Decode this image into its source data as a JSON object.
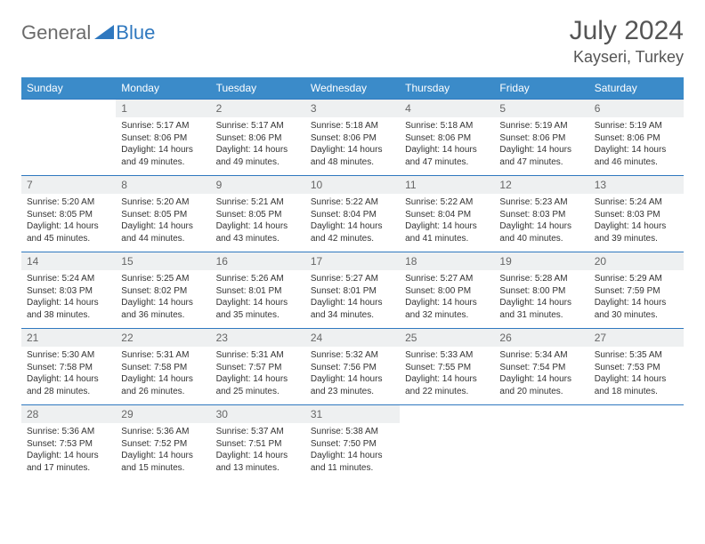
{
  "logo": {
    "general": "General",
    "blue": "Blue",
    "triangle_color": "#2f78bf",
    "text_gray": "#6b6b6b"
  },
  "title": "July 2024",
  "location": "Kayseri, Turkey",
  "header_bg": "#3b8bc9",
  "daynum_bg": "#eef0f1",
  "row_border": "#2f78bf",
  "dow": [
    "Sunday",
    "Monday",
    "Tuesday",
    "Wednesday",
    "Thursday",
    "Friday",
    "Saturday"
  ],
  "grid": [
    [
      {
        "n": "",
        "sr": "",
        "ss": "",
        "dl": ""
      },
      {
        "n": "1",
        "sr": "Sunrise: 5:17 AM",
        "ss": "Sunset: 8:06 PM",
        "dl": "Daylight: 14 hours and 49 minutes."
      },
      {
        "n": "2",
        "sr": "Sunrise: 5:17 AM",
        "ss": "Sunset: 8:06 PM",
        "dl": "Daylight: 14 hours and 49 minutes."
      },
      {
        "n": "3",
        "sr": "Sunrise: 5:18 AM",
        "ss": "Sunset: 8:06 PM",
        "dl": "Daylight: 14 hours and 48 minutes."
      },
      {
        "n": "4",
        "sr": "Sunrise: 5:18 AM",
        "ss": "Sunset: 8:06 PM",
        "dl": "Daylight: 14 hours and 47 minutes."
      },
      {
        "n": "5",
        "sr": "Sunrise: 5:19 AM",
        "ss": "Sunset: 8:06 PM",
        "dl": "Daylight: 14 hours and 47 minutes."
      },
      {
        "n": "6",
        "sr": "Sunrise: 5:19 AM",
        "ss": "Sunset: 8:06 PM",
        "dl": "Daylight: 14 hours and 46 minutes."
      }
    ],
    [
      {
        "n": "7",
        "sr": "Sunrise: 5:20 AM",
        "ss": "Sunset: 8:05 PM",
        "dl": "Daylight: 14 hours and 45 minutes."
      },
      {
        "n": "8",
        "sr": "Sunrise: 5:20 AM",
        "ss": "Sunset: 8:05 PM",
        "dl": "Daylight: 14 hours and 44 minutes."
      },
      {
        "n": "9",
        "sr": "Sunrise: 5:21 AM",
        "ss": "Sunset: 8:05 PM",
        "dl": "Daylight: 14 hours and 43 minutes."
      },
      {
        "n": "10",
        "sr": "Sunrise: 5:22 AM",
        "ss": "Sunset: 8:04 PM",
        "dl": "Daylight: 14 hours and 42 minutes."
      },
      {
        "n": "11",
        "sr": "Sunrise: 5:22 AM",
        "ss": "Sunset: 8:04 PM",
        "dl": "Daylight: 14 hours and 41 minutes."
      },
      {
        "n": "12",
        "sr": "Sunrise: 5:23 AM",
        "ss": "Sunset: 8:03 PM",
        "dl": "Daylight: 14 hours and 40 minutes."
      },
      {
        "n": "13",
        "sr": "Sunrise: 5:24 AM",
        "ss": "Sunset: 8:03 PM",
        "dl": "Daylight: 14 hours and 39 minutes."
      }
    ],
    [
      {
        "n": "14",
        "sr": "Sunrise: 5:24 AM",
        "ss": "Sunset: 8:03 PM",
        "dl": "Daylight: 14 hours and 38 minutes."
      },
      {
        "n": "15",
        "sr": "Sunrise: 5:25 AM",
        "ss": "Sunset: 8:02 PM",
        "dl": "Daylight: 14 hours and 36 minutes."
      },
      {
        "n": "16",
        "sr": "Sunrise: 5:26 AM",
        "ss": "Sunset: 8:01 PM",
        "dl": "Daylight: 14 hours and 35 minutes."
      },
      {
        "n": "17",
        "sr": "Sunrise: 5:27 AM",
        "ss": "Sunset: 8:01 PM",
        "dl": "Daylight: 14 hours and 34 minutes."
      },
      {
        "n": "18",
        "sr": "Sunrise: 5:27 AM",
        "ss": "Sunset: 8:00 PM",
        "dl": "Daylight: 14 hours and 32 minutes."
      },
      {
        "n": "19",
        "sr": "Sunrise: 5:28 AM",
        "ss": "Sunset: 8:00 PM",
        "dl": "Daylight: 14 hours and 31 minutes."
      },
      {
        "n": "20",
        "sr": "Sunrise: 5:29 AM",
        "ss": "Sunset: 7:59 PM",
        "dl": "Daylight: 14 hours and 30 minutes."
      }
    ],
    [
      {
        "n": "21",
        "sr": "Sunrise: 5:30 AM",
        "ss": "Sunset: 7:58 PM",
        "dl": "Daylight: 14 hours and 28 minutes."
      },
      {
        "n": "22",
        "sr": "Sunrise: 5:31 AM",
        "ss": "Sunset: 7:58 PM",
        "dl": "Daylight: 14 hours and 26 minutes."
      },
      {
        "n": "23",
        "sr": "Sunrise: 5:31 AM",
        "ss": "Sunset: 7:57 PM",
        "dl": "Daylight: 14 hours and 25 minutes."
      },
      {
        "n": "24",
        "sr": "Sunrise: 5:32 AM",
        "ss": "Sunset: 7:56 PM",
        "dl": "Daylight: 14 hours and 23 minutes."
      },
      {
        "n": "25",
        "sr": "Sunrise: 5:33 AM",
        "ss": "Sunset: 7:55 PM",
        "dl": "Daylight: 14 hours and 22 minutes."
      },
      {
        "n": "26",
        "sr": "Sunrise: 5:34 AM",
        "ss": "Sunset: 7:54 PM",
        "dl": "Daylight: 14 hours and 20 minutes."
      },
      {
        "n": "27",
        "sr": "Sunrise: 5:35 AM",
        "ss": "Sunset: 7:53 PM",
        "dl": "Daylight: 14 hours and 18 minutes."
      }
    ],
    [
      {
        "n": "28",
        "sr": "Sunrise: 5:36 AM",
        "ss": "Sunset: 7:53 PM",
        "dl": "Daylight: 14 hours and 17 minutes."
      },
      {
        "n": "29",
        "sr": "Sunrise: 5:36 AM",
        "ss": "Sunset: 7:52 PM",
        "dl": "Daylight: 14 hours and 15 minutes."
      },
      {
        "n": "30",
        "sr": "Sunrise: 5:37 AM",
        "ss": "Sunset: 7:51 PM",
        "dl": "Daylight: 14 hours and 13 minutes."
      },
      {
        "n": "31",
        "sr": "Sunrise: 5:38 AM",
        "ss": "Sunset: 7:50 PM",
        "dl": "Daylight: 14 hours and 11 minutes."
      },
      {
        "n": "",
        "sr": "",
        "ss": "",
        "dl": ""
      },
      {
        "n": "",
        "sr": "",
        "ss": "",
        "dl": ""
      },
      {
        "n": "",
        "sr": "",
        "ss": "",
        "dl": ""
      }
    ]
  ]
}
